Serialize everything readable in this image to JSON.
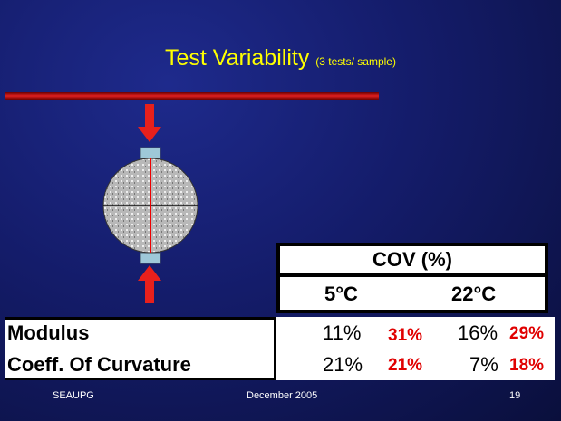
{
  "slide": {
    "title": "Test Variability",
    "subtitle": "(3 tests/ sample)",
    "table": {
      "header": "COV (%)",
      "columns": [
        "5°C",
        "22°C"
      ],
      "rows": [
        {
          "label": "Modulus",
          "values": [
            "11%",
            "31%",
            "16%",
            "29%"
          ]
        },
        {
          "label": "Coeff. Of Curvature",
          "values": [
            "21%",
            "21%",
            "7%",
            "18%"
          ]
        }
      ]
    },
    "footer": {
      "left": "SEAUPG",
      "center": "December 2005",
      "right": "19"
    }
  }
}
